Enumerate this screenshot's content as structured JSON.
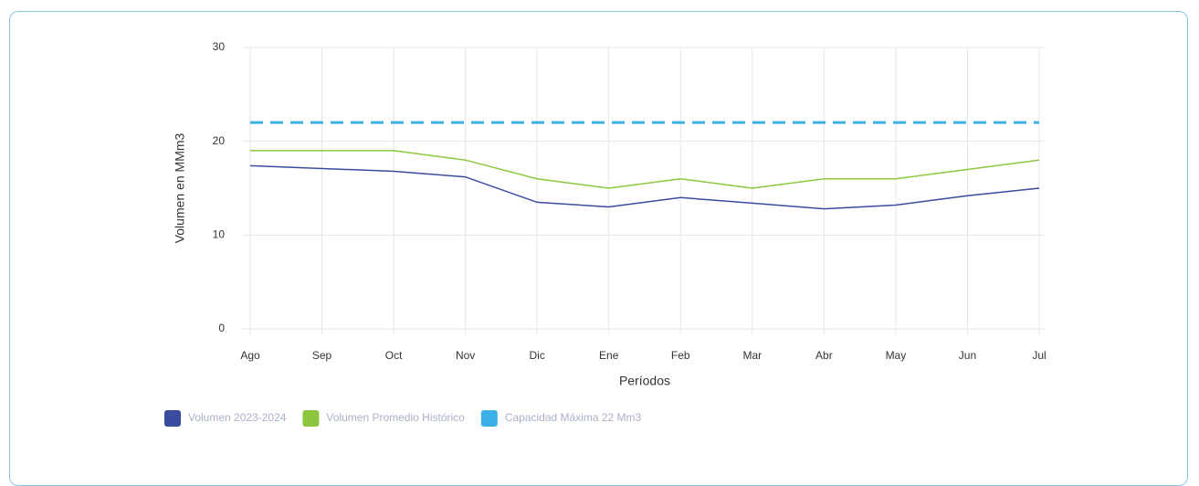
{
  "chart_data": {
    "type": "line",
    "x_label": "Períodos",
    "y_label": "Volumen en MMm3",
    "categories": [
      "Ago",
      "Sep",
      "Oct",
      "Nov",
      "Dic",
      "Ene",
      "Feb",
      "Mar",
      "Abr",
      "May",
      "Jun",
      "Jul"
    ],
    "series": [
      {
        "name": "Volumen 2023-2024",
        "color": "#3a4c9e",
        "values": [
          17.4,
          17.1,
          16.8,
          16.2,
          13.5,
          13.0,
          14.0,
          13.4,
          12.8,
          13.2,
          14.2,
          15.0
        ]
      },
      {
        "name": "Volumen Promedio Histórico",
        "color": "#8cc63e",
        "values": [
          19,
          19,
          19,
          18,
          16,
          15,
          16,
          15,
          16,
          16,
          17,
          18
        ]
      },
      {
        "name": "Capacidad Máxima 22 Mm3",
        "color": "#3cb0e6",
        "dashed": true,
        "values": [
          22,
          22,
          22,
          22,
          22,
          22,
          22,
          22,
          22,
          22,
          22,
          22
        ]
      }
    ],
    "ylim": [
      0,
      30
    ],
    "yticks": [
      0,
      10,
      20,
      30
    ],
    "grid": true
  }
}
